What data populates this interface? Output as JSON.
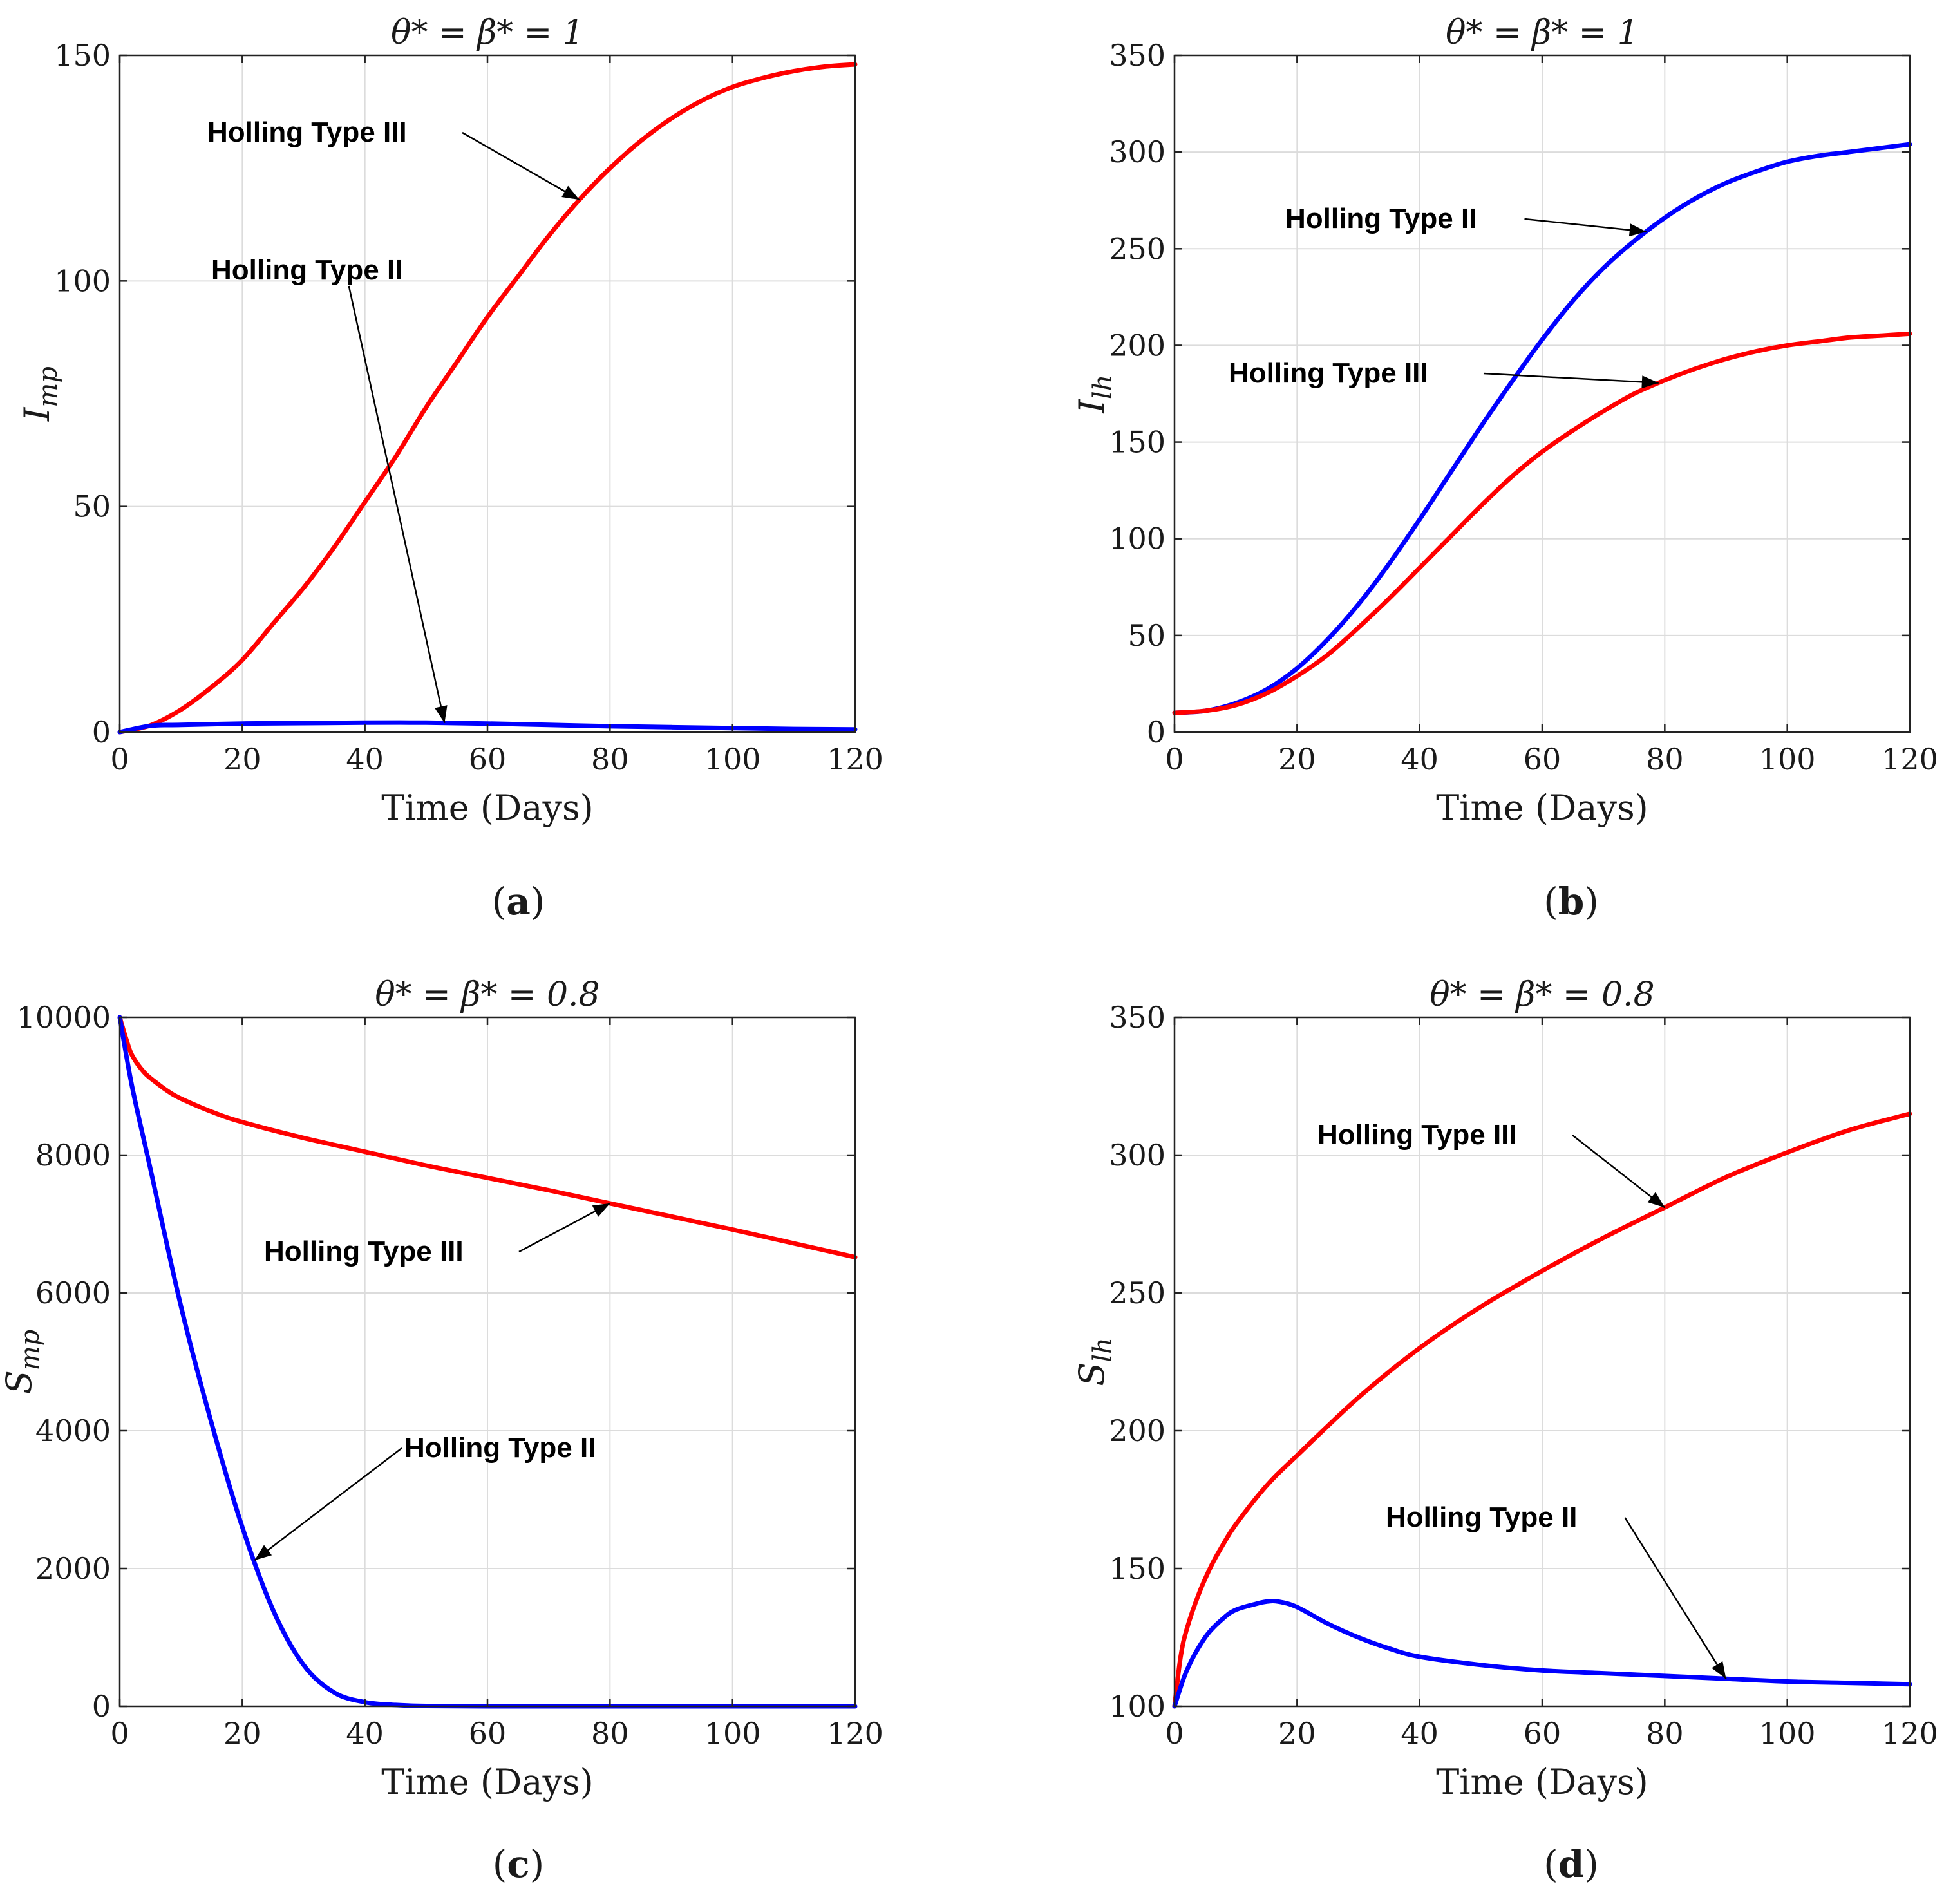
{
  "chart_data": [
    {
      "panel": "(a)",
      "type": "line",
      "title": "θ* = β* = 1",
      "xlabel": "Time (Days)",
      "ylabel": "I_mp",
      "xlim": [
        0,
        120
      ],
      "ylim": [
        0,
        150
      ],
      "xticks": [
        0,
        20,
        40,
        60,
        80,
        100,
        120
      ],
      "yticks": [
        0,
        50,
        100,
        150
      ],
      "grid": true,
      "series": [
        {
          "name": "Holling Type III",
          "color": "#ff0000",
          "x": [
            0,
            5,
            10,
            15,
            20,
            25,
            30,
            35,
            40,
            45,
            50,
            55,
            60,
            65,
            70,
            75,
            80,
            85,
            90,
            95,
            100,
            105,
            110,
            115,
            120
          ],
          "y": [
            0,
            1.5,
            5,
            10,
            16,
            24,
            32,
            41,
            51,
            61,
            72,
            82,
            92,
            101,
            110,
            118,
            125,
            131,
            136,
            140,
            143,
            145,
            146.5,
            147.5,
            148
          ]
        },
        {
          "name": "Holling Type II",
          "color": "#0000ff",
          "x": [
            0,
            5,
            10,
            20,
            30,
            40,
            50,
            60,
            70,
            80,
            90,
            100,
            110,
            120
          ],
          "y": [
            0,
            1.4,
            1.6,
            1.9,
            2.0,
            2.1,
            2.1,
            1.9,
            1.6,
            1.3,
            1.1,
            0.9,
            0.7,
            0.6
          ]
        }
      ],
      "annotations": [
        {
          "text": "Holling Type III",
          "series": "Holling Type III",
          "at_x": 75
        },
        {
          "text": "Holling Type II",
          "series": "Holling Type II",
          "at_x": 53
        }
      ]
    },
    {
      "panel": "(b)",
      "type": "line",
      "title": "θ* = β* = 1",
      "xlabel": "Time (Days)",
      "ylabel": "I_lh",
      "xlim": [
        0,
        120
      ],
      "ylim": [
        0,
        350
      ],
      "xticks": [
        0,
        20,
        40,
        60,
        80,
        100,
        120
      ],
      "yticks": [
        0,
        50,
        100,
        150,
        200,
        250,
        300,
        350
      ],
      "grid": true,
      "series": [
        {
          "name": "Holling Type II",
          "color": "#0000ff",
          "x": [
            0,
            5,
            10,
            15,
            20,
            25,
            30,
            35,
            40,
            45,
            50,
            55,
            60,
            65,
            70,
            75,
            80,
            85,
            90,
            95,
            100,
            105,
            110,
            115,
            120
          ],
          "y": [
            10,
            11,
            15,
            22,
            33,
            48,
            66,
            87,
            110,
            134,
            158,
            181,
            203,
            223,
            240,
            254,
            266,
            276,
            284,
            290,
            295,
            298,
            300,
            302,
            304
          ]
        },
        {
          "name": "Holling Type III",
          "color": "#ff0000",
          "x": [
            0,
            5,
            10,
            15,
            20,
            25,
            30,
            35,
            40,
            45,
            50,
            55,
            60,
            65,
            70,
            75,
            80,
            85,
            90,
            95,
            100,
            105,
            110,
            115,
            120
          ],
          "y": [
            10,
            11,
            14,
            20,
            29,
            40,
            54,
            69,
            85,
            101,
            117,
            132,
            145,
            156,
            166,
            175,
            182,
            188,
            193,
            197,
            200,
            202,
            204,
            205,
            206
          ]
        }
      ],
      "annotations": [
        {
          "text": "Holling Type II",
          "series": "Holling Type II",
          "at_x": 77
        },
        {
          "text": "Holling Type III",
          "series": "Holling Type III",
          "at_x": 79
        }
      ]
    },
    {
      "panel": "(c)",
      "type": "line",
      "title": "θ* = β* = 0.8",
      "xlabel": "Time (Days)",
      "ylabel": "S_mp",
      "xlim": [
        0,
        120
      ],
      "ylim": [
        0,
        10000
      ],
      "xticks": [
        0,
        20,
        40,
        60,
        80,
        100,
        120
      ],
      "yticks": [
        0,
        2000,
        4000,
        6000,
        8000,
        10000
      ],
      "grid": true,
      "series": [
        {
          "name": "Holling Type III",
          "color": "#ff0000",
          "x": [
            0,
            1,
            2,
            4,
            6,
            8,
            10,
            15,
            20,
            30,
            40,
            50,
            60,
            70,
            80,
            90,
            100,
            110,
            120
          ],
          "y": [
            10000,
            9700,
            9450,
            9200,
            9050,
            8920,
            8820,
            8630,
            8480,
            8250,
            8050,
            7850,
            7670,
            7490,
            7300,
            7110,
            6920,
            6720,
            6520
          ]
        },
        {
          "name": "Holling Type II",
          "color": "#0000ff",
          "x": [
            0,
            2,
            5,
            10,
            15,
            20,
            25,
            30,
            35,
            40,
            45,
            50,
            60,
            80,
            100,
            120
          ],
          "y": [
            10000,
            9000,
            7800,
            5800,
            4100,
            2600,
            1400,
            600,
            200,
            60,
            20,
            5,
            0,
            0,
            0,
            0
          ]
        }
      ],
      "annotations": [
        {
          "text": "Holling Type III",
          "series": "Holling Type III",
          "at_x": 80
        },
        {
          "text": "Holling Type II",
          "series": "Holling Type II",
          "at_x": 22
        }
      ]
    },
    {
      "panel": "(d)",
      "type": "line",
      "title": "θ* = β* = 0.8",
      "xlabel": "Time (Days)",
      "ylabel": "S_lh",
      "xlim": [
        0,
        120
      ],
      "ylim": [
        100,
        350
      ],
      "xticks": [
        0,
        20,
        40,
        60,
        80,
        100,
        120
      ],
      "yticks": [
        100,
        150,
        200,
        250,
        300,
        350
      ],
      "grid": true,
      "series": [
        {
          "name": "Holling Type III",
          "color": "#ff0000",
          "x": [
            0,
            1,
            2,
            4,
            6,
            8,
            10,
            15,
            20,
            30,
            40,
            50,
            60,
            70,
            80,
            90,
            100,
            110,
            120
          ],
          "y": [
            100,
            118,
            128,
            141,
            151,
            159,
            166,
            180,
            191,
            212,
            230,
            245,
            258,
            270,
            281,
            292,
            301,
            309,
            315
          ]
        },
        {
          "name": "Holling Type II",
          "color": "#0000ff",
          "x": [
            0,
            2,
            5,
            8,
            10,
            13,
            15,
            17,
            20,
            25,
            30,
            35,
            40,
            50,
            60,
            70,
            80,
            90,
            100,
            110,
            120
          ],
          "y": [
            100,
            113,
            125,
            132,
            135,
            137,
            138,
            138,
            136,
            130,
            125,
            121,
            118,
            115,
            113,
            112,
            111,
            110,
            109,
            108.5,
            108
          ]
        }
      ],
      "annotations": [
        {
          "text": "Holling Type III",
          "series": "Holling Type III",
          "at_x": 80
        },
        {
          "text": "Holling Type II",
          "series": "Holling Type II",
          "at_x": 90
        }
      ]
    }
  ],
  "panel_labels": [
    "(a)",
    "(b)",
    "(c)",
    "(d)"
  ]
}
